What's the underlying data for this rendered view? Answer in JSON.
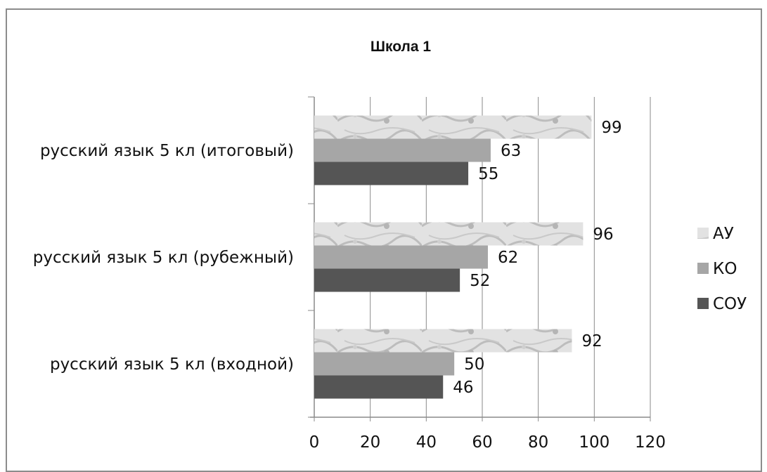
{
  "chart_data": {
    "type": "bar",
    "orientation": "horizontal",
    "title": "Школа 1",
    "categories": [
      "русский язык 5 кл (входной)",
      "русский язык 5 кл (рубежный)",
      "русский язык 5 кл (итоговый)"
    ],
    "series": [
      {
        "name": "АУ",
        "values": [
          92,
          96,
          99
        ],
        "color": "#d8d8d8"
      },
      {
        "name": "КО",
        "values": [
          50,
          62,
          63
        ],
        "color": "#a6a6a6"
      },
      {
        "name": "СОУ",
        "values": [
          46,
          52,
          55
        ],
        "color": "#555555"
      }
    ],
    "xlim": [
      0,
      120
    ],
    "xticks": [
      "0",
      "20",
      "40",
      "60",
      "80",
      "100",
      "120"
    ],
    "grid": true,
    "legend": "right"
  }
}
